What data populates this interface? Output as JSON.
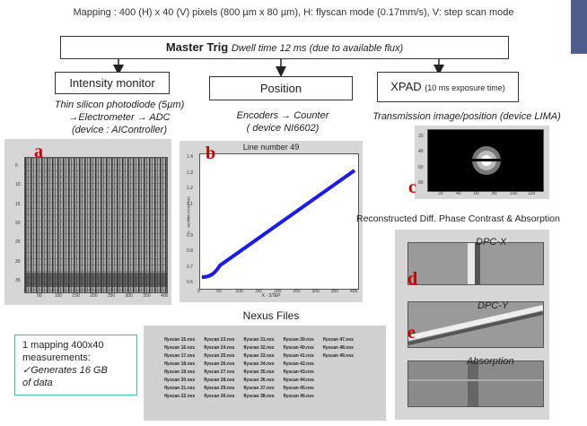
{
  "header": {
    "mapping_text": "Mapping : 400 (H) x 40 (V) pixels (800 µm x 80 µm), H: flyscan mode (0.17mm/s), V: step scan mode"
  },
  "master": {
    "title": "Master Trig",
    "subtitle": "Dwell time 12 ms (due to available flux)"
  },
  "branches": {
    "intensity": {
      "title": "Intensity monitor",
      "note_line1": "Thin silicon photodiode (5µm)",
      "note_line2": "→Electrometer → ADC",
      "note_line3": "(device : AIController)"
    },
    "position": {
      "title": "Position",
      "note_line1": "Encoders → Counter",
      "note_line2": "( device NI6602)"
    },
    "xpad": {
      "title": "XPAD",
      "title_suffix": "(10 ms exposure time)",
      "note_line1": "Transmission image/position (device LIMA)"
    }
  },
  "panels": {
    "a": {
      "letter": "a",
      "xticks": [
        "50",
        "100",
        "150",
        "200",
        "250",
        "300",
        "350",
        "400"
      ],
      "yticks": [
        "5",
        "10",
        "15",
        "20",
        "25",
        "30",
        "35"
      ]
    },
    "b": {
      "letter": "b",
      "title": "Line number 49",
      "xlabel": "X - STEP",
      "ylabel": "X - MOTOR POSITION",
      "xticks": [
        "0",
        "50",
        "100",
        "150",
        "200",
        "250",
        "300",
        "350",
        "400"
      ],
      "yticks": [
        "1.4",
        "1.3",
        "1.2",
        "1.1",
        "1",
        "0.9",
        "0.8",
        "0.7",
        "0.6"
      ]
    },
    "c": {
      "letter": "c",
      "xticks": [
        "20",
        "40",
        "60",
        "80",
        "100",
        "120"
      ],
      "yticks": [
        "20",
        "40",
        "60",
        "80"
      ]
    },
    "d": {
      "letter": "d",
      "title": "DPC-X"
    },
    "e": {
      "letter": "e",
      "title": "DPC-Y"
    },
    "absorption": {
      "title": "Absorption"
    }
  },
  "reconstructed_title": "Reconstructed Diff. Phase Contrast & Absorption",
  "nexus": {
    "title": "Nexus Files",
    "columns": [
      [
        "flyscan 15.nxs",
        "flyscan 16.nxs",
        "flyscan 17.nxs",
        "flyscan 18.nxs",
        "flyscan 19.nxs",
        "flyscan 20.nxs",
        "flyscan 21.nxs",
        "flyscan 22.nxs"
      ],
      [
        "flyscan 23.nxs",
        "flyscan 24.nxs",
        "flyscan 25.nxs",
        "flyscan 26.nxs",
        "flyscan 27.nxs",
        "flyscan 28.nxs",
        "flyscan 29.nxs",
        "flyscan 30.nxs"
      ],
      [
        "flyscan 31.nxs",
        "flyscan 32.nxs",
        "flyscan 33.nxs",
        "flyscan 34.nxs",
        "flyscan 35.nxs",
        "flyscan 36.nxs",
        "flyscan 37.nxs",
        "flyscan 38.nxs"
      ],
      [
        "flyscan 39.nxs",
        "flyscan 40.nxs",
        "flyscan 41.nxs",
        "flyscan 42.nxs",
        "flyscan 43.nxs",
        "flyscan 44.nxs",
        "flyscan 45.nxs",
        "flyscan 46.nxs"
      ],
      [
        "flyscan 47.nxs",
        "flyscan 48.nxs",
        "flyscan 49.nxs",
        "",
        "",
        "",
        "",
        ""
      ]
    ]
  },
  "summary": {
    "line1": "1 mapping 400x40",
    "line2": "measurements:",
    "line3": "✓Generates 16 GB",
    "line4": "of data"
  },
  "colors": {
    "accent_red": "#cc0000",
    "curve_blue": "#1a1aee",
    "summary_border": "#40c0a0",
    "corner_tab": "#4f5d8c"
  }
}
